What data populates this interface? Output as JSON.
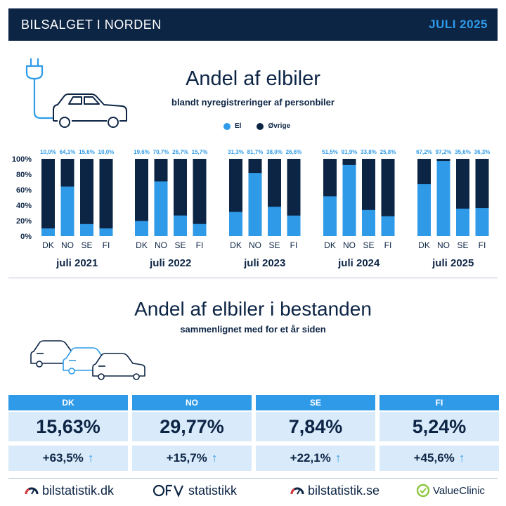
{
  "header": {
    "title": "BILSALGET I NORDEN",
    "date": "JULI 2025"
  },
  "section1": {
    "title": "Andel af elbiler",
    "subtitle": "blandt nyregistreringer af personbiler"
  },
  "legend": [
    {
      "label": "El",
      "color": "#2f9be8"
    },
    {
      "label": "Øvrige",
      "color": "#0d2545"
    }
  ],
  "chart_data": {
    "type": "bar",
    "stacked": true,
    "ylim": [
      0,
      100
    ],
    "yticks": [
      "100%",
      "80%",
      "60%",
      "40%",
      "20%",
      "0%"
    ],
    "groups": [
      {
        "label": "juli 2021",
        "categories": [
          "DK",
          "NO",
          "SE",
          "FI"
        ],
        "values": [
          10.0,
          64.1,
          15.6,
          10.0
        ],
        "labels": [
          "10,0%",
          "64,1%",
          "15,6%",
          "10,0%"
        ]
      },
      {
        "label": "juli 2022",
        "categories": [
          "DK",
          "NO",
          "SE",
          "FI"
        ],
        "values": [
          19.6,
          70.7,
          26.7,
          15.7
        ],
        "labels": [
          "19,6%",
          "70,7%",
          "26,7%",
          "15,7%"
        ]
      },
      {
        "label": "juli 2023",
        "categories": [
          "DK",
          "NO",
          "SE",
          "FI"
        ],
        "values": [
          31.3,
          81.7,
          38.0,
          26.6
        ],
        "labels": [
          "31,3%",
          "81,7%",
          "38,0%",
          "26,6%"
        ]
      },
      {
        "label": "juli 2024",
        "categories": [
          "DK",
          "NO",
          "SE",
          "FI"
        ],
        "values": [
          51.5,
          91.9,
          33.8,
          25.8
        ],
        "labels": [
          "51,5%",
          "91,9%",
          "33,8%",
          "25,8%"
        ]
      },
      {
        "label": "juli 2025",
        "categories": [
          "DK",
          "NO",
          "SE",
          "FI"
        ],
        "values": [
          67.2,
          97.2,
          35.6,
          36.3
        ],
        "labels": [
          "67,2%",
          "97,2%",
          "35,6%",
          "36,3%"
        ]
      }
    ],
    "colors": {
      "el": "#2f9be8",
      "ovrige": "#0d2545"
    }
  },
  "section2": {
    "title": "Andel af elbiler i bestanden",
    "subtitle": "sammenlignet med for et år siden"
  },
  "stock": [
    {
      "country": "DK",
      "share": "15,63%",
      "change": "+63,5%"
    },
    {
      "country": "NO",
      "share": "29,77%",
      "change": "+15,7%"
    },
    {
      "country": "SE",
      "share": "7,84%",
      "change": "+22,1%"
    },
    {
      "country": "FI",
      "share": "5,24%",
      "change": "+45,6%"
    }
  ],
  "arrow": "↑",
  "logos": {
    "bilstatistik_dk": "bilstatistik.dk",
    "ofv": "statistikk",
    "bilstatistik_se": "bilstatistik.se",
    "valueclinic": "ValueClinic"
  }
}
